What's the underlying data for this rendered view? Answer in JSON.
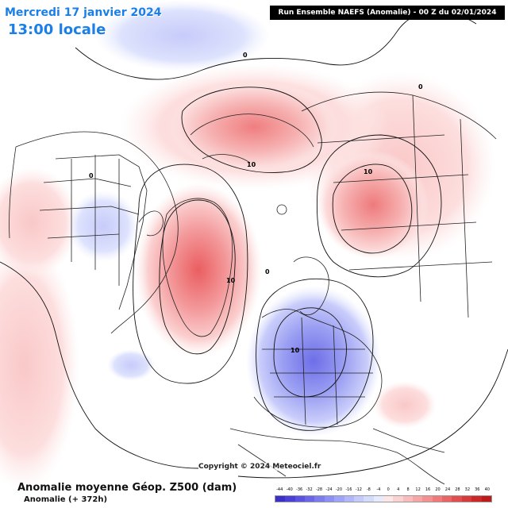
{
  "header": {
    "date": "Mercredi 17 janvier 2024",
    "time": "13:00 locale",
    "run_info": "Run Ensemble NAEFS  (Anomalie)  -  00 Z du 02/01/2024"
  },
  "footer": {
    "copyright": "Copyright © 2024 Meteociel.fr",
    "title": "Anomalie moyenne Géop. Z500 (dam)",
    "subtitle": "Anomalie (+ 372h)"
  },
  "legend": {
    "ticks": [
      "-44",
      "-40",
      "-36",
      "-32",
      "-28",
      "-24",
      "-20",
      "-16",
      "-12",
      "-8",
      "-4",
      "0",
      "4",
      "8",
      "12",
      "16",
      "20",
      "24",
      "28",
      "32",
      "36",
      "40"
    ],
    "colors": [
      "#3c2fc9",
      "#4a3fd6",
      "#5a52e0",
      "#6a66ea",
      "#7b7cf0",
      "#8c90f4",
      "#9ea4f7",
      "#b0b8fa",
      "#c2cbfc",
      "#d4dcfd",
      "#e6ecfe",
      "#fde6e6",
      "#fbd2d2",
      "#f9bcbc",
      "#f7a6a6",
      "#f49090",
      "#f07a7a",
      "#ea6464",
      "#e24e4e",
      "#d83a3a",
      "#cc2828",
      "#bd1a1a"
    ]
  },
  "contours": {
    "zero_label": "0",
    "ten_label": "10"
  },
  "colors": {
    "positive": "#f49a9a",
    "negative": "#9c9ef2",
    "title_blue": "#1a7fe6"
  }
}
